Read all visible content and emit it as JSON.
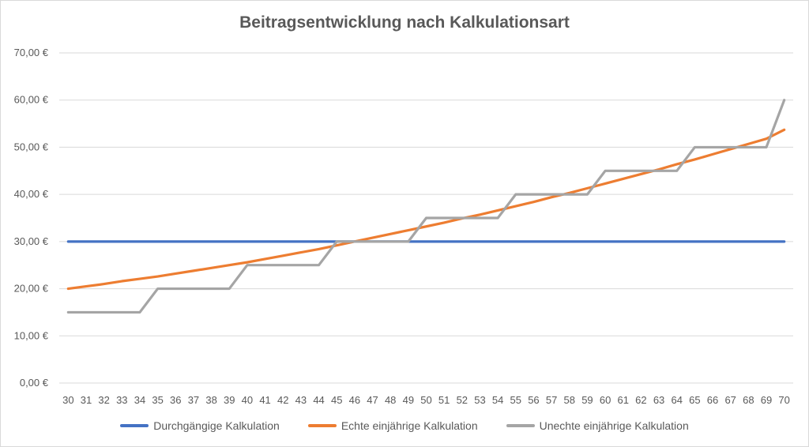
{
  "chart_data": {
    "type": "line",
    "title": "Beitragsentwicklung nach Kalkulationsart",
    "xlabel": "",
    "ylabel": "",
    "x": [
      30,
      31,
      32,
      33,
      34,
      35,
      36,
      37,
      38,
      39,
      40,
      41,
      42,
      43,
      44,
      45,
      46,
      47,
      48,
      49,
      50,
      51,
      52,
      53,
      54,
      55,
      56,
      57,
      58,
      59,
      60,
      61,
      62,
      63,
      64,
      65,
      66,
      67,
      68,
      69,
      70
    ],
    "ylim": [
      0,
      70
    ],
    "yticks": [
      0,
      10,
      20,
      30,
      40,
      50,
      60,
      70
    ],
    "ytick_labels": [
      "0,00 €",
      "10,00 €",
      "20,00 €",
      "30,00 €",
      "40,00 €",
      "50,00 €",
      "60,00 €",
      "70,00 €"
    ],
    "grid": "horizontal",
    "legend": "bottom",
    "series": [
      {
        "name": "Durchgängige Kalkulation",
        "color": "#4472c4",
        "values": [
          30,
          30,
          30,
          30,
          30,
          30,
          30,
          30,
          30,
          30,
          30,
          30,
          30,
          30,
          30,
          30,
          30,
          30,
          30,
          30,
          30,
          30,
          30,
          30,
          30,
          30,
          30,
          30,
          30,
          30,
          30,
          30,
          30,
          30,
          30,
          30,
          30,
          30,
          30,
          30,
          30
        ]
      },
      {
        "name": "Echte einjährige Kalkulation",
        "color": "#ed7d31",
        "values": [
          20.0,
          20.5,
          21.0,
          21.6,
          22.1,
          22.6,
          23.2,
          23.8,
          24.4,
          25.0,
          25.6,
          26.3,
          27.0,
          27.7,
          28.4,
          29.2,
          30.0,
          30.8,
          31.6,
          32.4,
          33.2,
          34.0,
          34.9,
          35.7,
          36.6,
          37.5,
          38.4,
          39.4,
          40.3,
          41.3,
          42.3,
          43.3,
          44.3,
          45.3,
          46.4,
          47.4,
          48.5,
          49.6,
          50.7,
          51.8,
          53.7
        ]
      },
      {
        "name": "Unechte einjährige Kalkulation",
        "color": "#a5a5a5",
        "values": [
          15,
          15,
          15,
          15,
          15,
          20,
          20,
          20,
          20,
          20,
          25,
          25,
          25,
          25,
          25,
          30,
          30,
          30,
          30,
          30,
          35,
          35,
          35,
          35,
          35,
          40,
          40,
          40,
          40,
          40,
          45,
          45,
          45,
          45,
          45,
          50,
          50,
          50,
          50,
          50,
          60
        ]
      }
    ]
  }
}
